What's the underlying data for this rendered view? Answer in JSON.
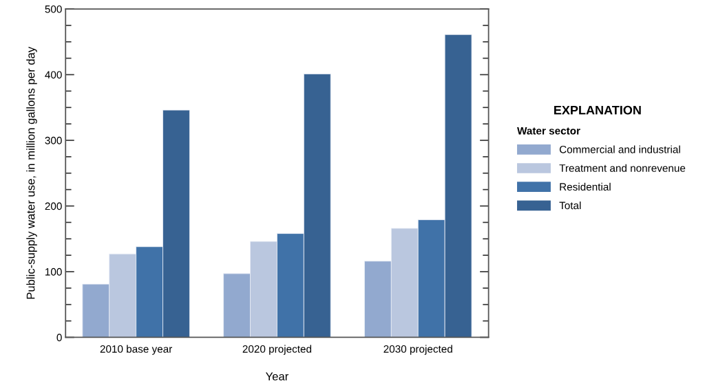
{
  "chart_data": {
    "type": "bar",
    "xlabel": "Year",
    "ylabel": "Public-supply water use, in million gallons per day",
    "categories": [
      "2010 base year",
      "2020 projected",
      "2030 projected"
    ],
    "series": [
      {
        "name": "Commercial and industrial",
        "color": "#92a9cf",
        "values": [
          81,
          97,
          116
        ]
      },
      {
        "name": "Treatment and nonrevenue",
        "color": "#bac7df",
        "values": [
          127,
          146,
          166
        ]
      },
      {
        "name": "Residential",
        "color": "#4072a8",
        "values": [
          138,
          158,
          179
        ]
      },
      {
        "name": "Total",
        "color": "#376292",
        "values": [
          346,
          401,
          461
        ]
      }
    ],
    "ylim": [
      0,
      500
    ],
    "yticks": [
      0,
      {
        "value": 25,
        "label": null
      },
      {
        "value": 50,
        "label": null
      },
      {
        "value": 75,
        "label": null
      },
      100,
      {
        "value": 125,
        "label": null
      },
      {
        "value": 150,
        "label": null
      },
      {
        "value": 175,
        "label": null
      },
      200,
      {
        "value": 225,
        "label": null
      },
      {
        "value": 250,
        "label": null
      },
      {
        "value": 275,
        "label": null
      },
      300,
      {
        "value": 325,
        "label": null
      },
      {
        "value": 350,
        "label": null
      },
      {
        "value": 375,
        "label": null
      },
      400,
      {
        "value": 425,
        "label": null
      },
      {
        "value": 450,
        "label": null
      },
      {
        "value": 475,
        "label": null
      },
      500
    ],
    "legend": "right",
    "legend_title": "Water sector",
    "annotations": [
      "EXPLANATION"
    ],
    "grid": false
  }
}
